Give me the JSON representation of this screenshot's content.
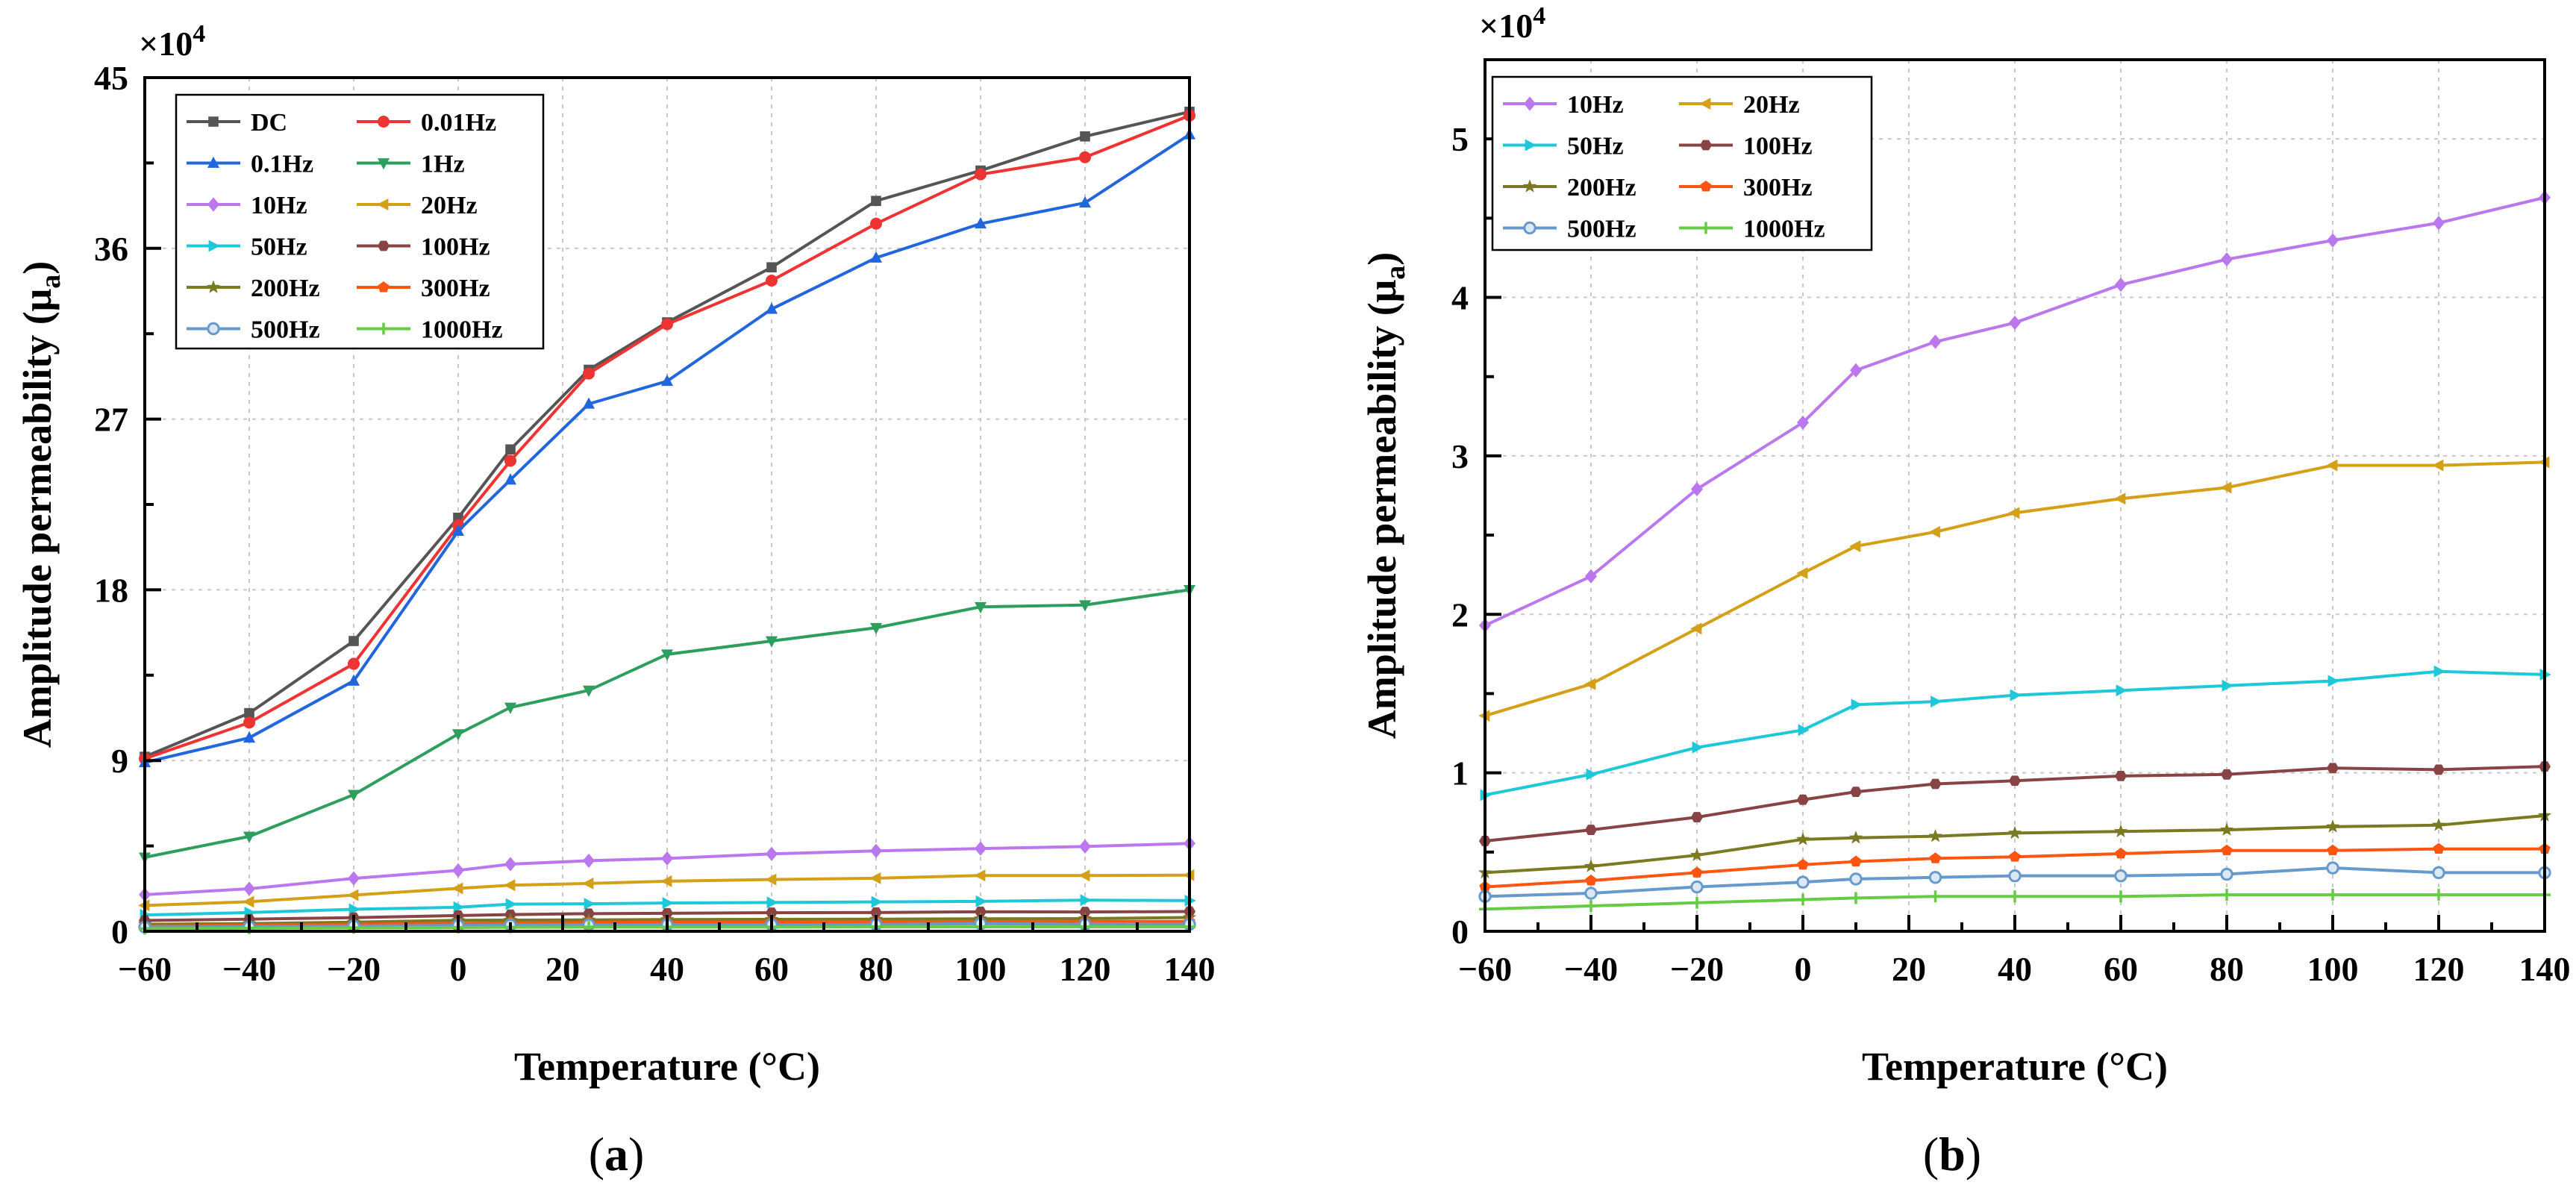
{
  "chart_data": [
    {
      "type": "line",
      "panel_label": "(a)",
      "panel_letter": "a",
      "multiplier": "×10",
      "multiplier_exp": "4",
      "xlabel": "Temperature (°C)",
      "ylabel_main": "Amplitude permeability (μ",
      "ylabel_sub": "a",
      "ylabel_close": ")",
      "xlim": [
        -60,
        140
      ],
      "ylim": [
        0,
        45
      ],
      "xticks": [
        -60,
        -40,
        -20,
        0,
        20,
        40,
        60,
        80,
        100,
        120,
        140
      ],
      "yticks": [
        0,
        9,
        18,
        27,
        36,
        45
      ],
      "grid": true,
      "legend_position": "top-left",
      "legend_columns": 2,
      "x": [
        -60,
        -40,
        -20,
        0,
        10,
        25,
        40,
        60,
        80,
        100,
        120,
        140
      ],
      "series": [
        {
          "name": "DC",
          "color": "#555555",
          "marker": "square",
          "values": [
            9.2,
            11.5,
            15.3,
            21.8,
            25.4,
            29.6,
            32.1,
            35.0,
            38.5,
            40.1,
            41.9,
            43.2
          ]
        },
        {
          "name": "0.01Hz",
          "color": "#ee3333",
          "marker": "circle",
          "values": [
            9.1,
            11.0,
            14.1,
            21.4,
            24.8,
            29.4,
            32.0,
            34.3,
            37.3,
            39.9,
            40.8,
            43.0
          ]
        },
        {
          "name": "0.1Hz",
          "color": "#2266dd",
          "marker": "triangle-up",
          "values": [
            8.9,
            10.2,
            13.2,
            21.1,
            23.8,
            27.8,
            29.0,
            32.8,
            35.5,
            37.3,
            38.4,
            42.0
          ]
        },
        {
          "name": "1Hz",
          "color": "#2e9e5e",
          "marker": "triangle-down",
          "values": [
            3.9,
            5.0,
            7.2,
            10.4,
            11.8,
            12.7,
            14.6,
            15.3,
            16.0,
            17.1,
            17.2,
            18.0
          ]
        },
        {
          "name": "10Hz",
          "color": "#bb77ee",
          "marker": "diamond",
          "values": [
            1.93,
            2.24,
            2.79,
            3.21,
            3.54,
            3.72,
            3.84,
            4.08,
            4.24,
            4.36,
            4.47,
            4.63
          ]
        },
        {
          "name": "20Hz",
          "color": "#d4a017",
          "marker": "triangle-left",
          "values": [
            1.36,
            1.56,
            1.91,
            2.26,
            2.43,
            2.52,
            2.64,
            2.73,
            2.8,
            2.94,
            2.94,
            2.96
          ]
        },
        {
          "name": "50Hz",
          "color": "#1ec8d8",
          "marker": "triangle-right",
          "values": [
            0.86,
            0.99,
            1.16,
            1.27,
            1.43,
            1.45,
            1.49,
            1.52,
            1.55,
            1.58,
            1.64,
            1.62
          ]
        },
        {
          "name": "100Hz",
          "color": "#884444",
          "marker": "hexagon",
          "values": [
            0.57,
            0.64,
            0.72,
            0.83,
            0.88,
            0.93,
            0.95,
            0.98,
            0.99,
            1.03,
            1.02,
            1.04
          ]
        },
        {
          "name": "200Hz",
          "color": "#7a7a22",
          "marker": "star",
          "values": [
            0.37,
            0.41,
            0.48,
            0.58,
            0.59,
            0.6,
            0.62,
            0.63,
            0.64,
            0.66,
            0.67,
            0.73
          ]
        },
        {
          "name": "300Hz",
          "color": "#ff5511",
          "marker": "pentagon",
          "values": [
            0.28,
            0.32,
            0.37,
            0.42,
            0.44,
            0.46,
            0.47,
            0.49,
            0.51,
            0.51,
            0.52,
            0.52
          ]
        },
        {
          "name": "500Hz",
          "color": "#6699cc",
          "marker": "open-circle",
          "values": [
            0.22,
            0.24,
            0.28,
            0.31,
            0.33,
            0.34,
            0.35,
            0.35,
            0.36,
            0.4,
            0.37,
            0.37
          ]
        },
        {
          "name": "1000Hz",
          "color": "#66cc44",
          "marker": "plus",
          "values": [
            0.14,
            0.16,
            0.18,
            0.2,
            0.21,
            0.22,
            0.22,
            0.22,
            0.23,
            0.23,
            0.23,
            0.23
          ]
        }
      ]
    },
    {
      "type": "line",
      "panel_label": "(b)",
      "panel_letter": "b",
      "multiplier": "×10",
      "multiplier_exp": "4",
      "xlabel": "Temperature (°C)",
      "ylabel_main": "Amplitude permeability (μ",
      "ylabel_sub": "a",
      "ylabel_close": ")",
      "xlim": [
        -60,
        140
      ],
      "ylim": [
        0,
        5.5
      ],
      "xticks": [
        -60,
        -40,
        -20,
        0,
        20,
        40,
        60,
        80,
        100,
        120,
        140
      ],
      "yticks": [
        0,
        1,
        2,
        3,
        4,
        5
      ],
      "grid": true,
      "legend_position": "top-left",
      "legend_columns": 2,
      "x": [
        -60,
        -40,
        -20,
        0,
        10,
        25,
        40,
        60,
        80,
        100,
        120,
        140
      ],
      "series": [
        {
          "name": "10Hz",
          "color": "#bb77ee",
          "marker": "diamond",
          "values": [
            1.93,
            2.24,
            2.79,
            3.21,
            3.54,
            3.72,
            3.84,
            4.08,
            4.24,
            4.36,
            4.47,
            4.63
          ]
        },
        {
          "name": "20Hz",
          "color": "#d4a017",
          "marker": "triangle-left",
          "values": [
            1.36,
            1.56,
            1.91,
            2.26,
            2.43,
            2.52,
            2.64,
            2.73,
            2.8,
            2.94,
            2.94,
            2.96
          ]
        },
        {
          "name": "50Hz",
          "color": "#1ec8d8",
          "marker": "triangle-right",
          "values": [
            0.86,
            0.99,
            1.16,
            1.27,
            1.43,
            1.45,
            1.49,
            1.52,
            1.55,
            1.58,
            1.64,
            1.62
          ]
        },
        {
          "name": "100Hz",
          "color": "#884444",
          "marker": "hexagon",
          "values": [
            0.57,
            0.64,
            0.72,
            0.83,
            0.88,
            0.93,
            0.95,
            0.98,
            0.99,
            1.03,
            1.02,
            1.04
          ]
        },
        {
          "name": "200Hz",
          "color": "#7a7a22",
          "marker": "star",
          "values": [
            0.37,
            0.41,
            0.48,
            0.58,
            0.59,
            0.6,
            0.62,
            0.63,
            0.64,
            0.66,
            0.67,
            0.73
          ]
        },
        {
          "name": "300Hz",
          "color": "#ff5511",
          "marker": "pentagon",
          "values": [
            0.28,
            0.32,
            0.37,
            0.42,
            0.44,
            0.46,
            0.47,
            0.49,
            0.51,
            0.51,
            0.52,
            0.52
          ]
        },
        {
          "name": "500Hz",
          "color": "#6699cc",
          "marker": "open-circle",
          "values": [
            0.22,
            0.24,
            0.28,
            0.31,
            0.33,
            0.34,
            0.35,
            0.35,
            0.36,
            0.4,
            0.37,
            0.37
          ]
        },
        {
          "name": "1000Hz",
          "color": "#66cc44",
          "marker": "plus",
          "values": [
            0.14,
            0.16,
            0.18,
            0.2,
            0.21,
            0.22,
            0.22,
            0.22,
            0.23,
            0.23,
            0.23,
            0.23
          ]
        }
      ]
    }
  ]
}
